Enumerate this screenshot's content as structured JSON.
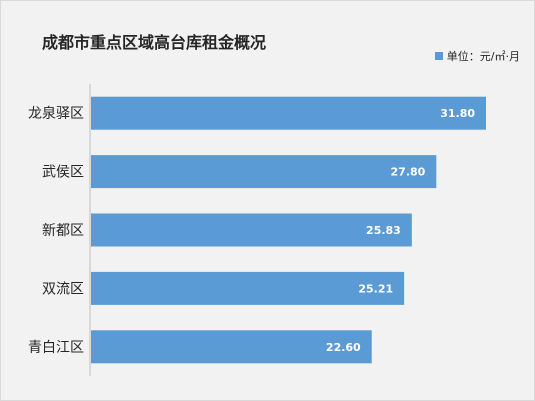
{
  "chart_data": {
    "type": "bar",
    "orientation": "horizontal",
    "title": "成都市重点区域高台库租金概况",
    "legend": {
      "label": "单位：元/㎡·月",
      "position": "top-right"
    },
    "categories": [
      "龙泉驿区",
      "武侯区",
      "新都区",
      "双流区",
      "青白江区"
    ],
    "values": [
      31.8,
      27.8,
      25.83,
      25.21,
      22.6
    ],
    "value_labels": [
      "31.80",
      "27.80",
      "25.83",
      "25.21",
      "22.60"
    ],
    "xlim": [
      0,
      35
    ],
    "grid": false,
    "colors": {
      "bar": "#5b9bd5",
      "axis": "#bfbfbf",
      "background": "#f2f2f2"
    }
  }
}
